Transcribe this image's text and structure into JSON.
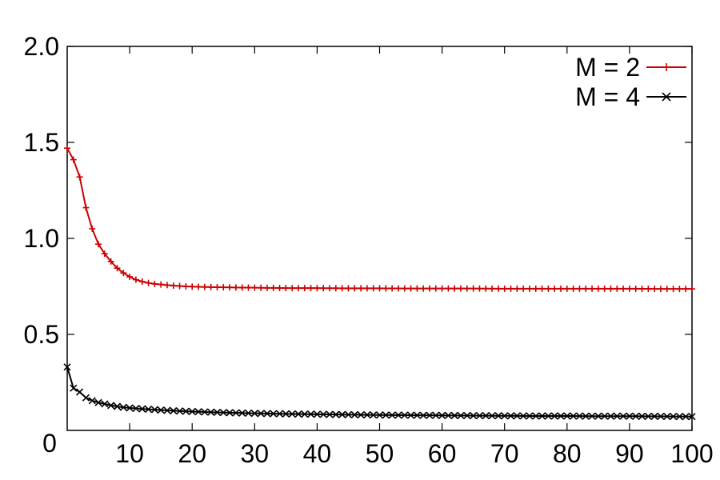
{
  "chart_data": {
    "type": "line",
    "title": "",
    "xlabel": "",
    "ylabel": "",
    "xlim": [
      0,
      100
    ],
    "ylim": [
      0,
      2.0
    ],
    "grid": false,
    "legend_position": "top-right",
    "x_ticks": [
      10,
      20,
      30,
      40,
      50,
      60,
      70,
      80,
      90,
      100
    ],
    "x_tick_labels": [
      "10",
      "20",
      "30",
      "40",
      "50",
      "60",
      "70",
      "80",
      "90",
      "100"
    ],
    "x_origin_label": "0",
    "y_ticks": [
      0.5,
      1.0,
      1.5,
      2.0
    ],
    "y_tick_labels": [
      "0.5",
      "1.0",
      "1.5",
      "2.0"
    ],
    "series": [
      {
        "name": "M = 2",
        "color": "#cc0000",
        "marker": "plus",
        "x": [
          0,
          1,
          2,
          3,
          4,
          5,
          6,
          7,
          8,
          9,
          10,
          11,
          12,
          13,
          14,
          15,
          16,
          17,
          18,
          19,
          20,
          22,
          24,
          26,
          28,
          30,
          33,
          36,
          40,
          45,
          50,
          55,
          60,
          65,
          70,
          75,
          80,
          85,
          90,
          95,
          100
        ],
        "y": [
          1.47,
          1.41,
          1.32,
          1.16,
          1.05,
          0.97,
          0.92,
          0.88,
          0.845,
          0.82,
          0.8,
          0.785,
          0.775,
          0.768,
          0.763,
          0.76,
          0.757,
          0.754,
          0.752,
          0.75,
          0.749,
          0.747,
          0.746,
          0.745,
          0.744,
          0.743,
          0.742,
          0.741,
          0.741,
          0.74,
          0.74,
          0.739,
          0.739,
          0.739,
          0.738,
          0.738,
          0.738,
          0.738,
          0.738,
          0.737,
          0.737
        ]
      },
      {
        "name": "M = 4",
        "color": "#000000",
        "marker": "cross",
        "x": [
          0,
          1,
          2,
          3,
          4,
          5,
          6,
          7,
          8,
          9,
          10,
          12,
          14,
          16,
          18,
          20,
          25,
          30,
          35,
          40,
          45,
          50,
          55,
          60,
          65,
          70,
          75,
          80,
          85,
          90,
          95,
          100
        ],
        "y": [
          0.33,
          0.22,
          0.2,
          0.17,
          0.155,
          0.145,
          0.138,
          0.13,
          0.125,
          0.12,
          0.117,
          0.112,
          0.108,
          0.104,
          0.101,
          0.098,
          0.093,
          0.089,
          0.086,
          0.084,
          0.082,
          0.08,
          0.079,
          0.078,
          0.077,
          0.076,
          0.075,
          0.075,
          0.074,
          0.074,
          0.073,
          0.072
        ]
      }
    ]
  }
}
